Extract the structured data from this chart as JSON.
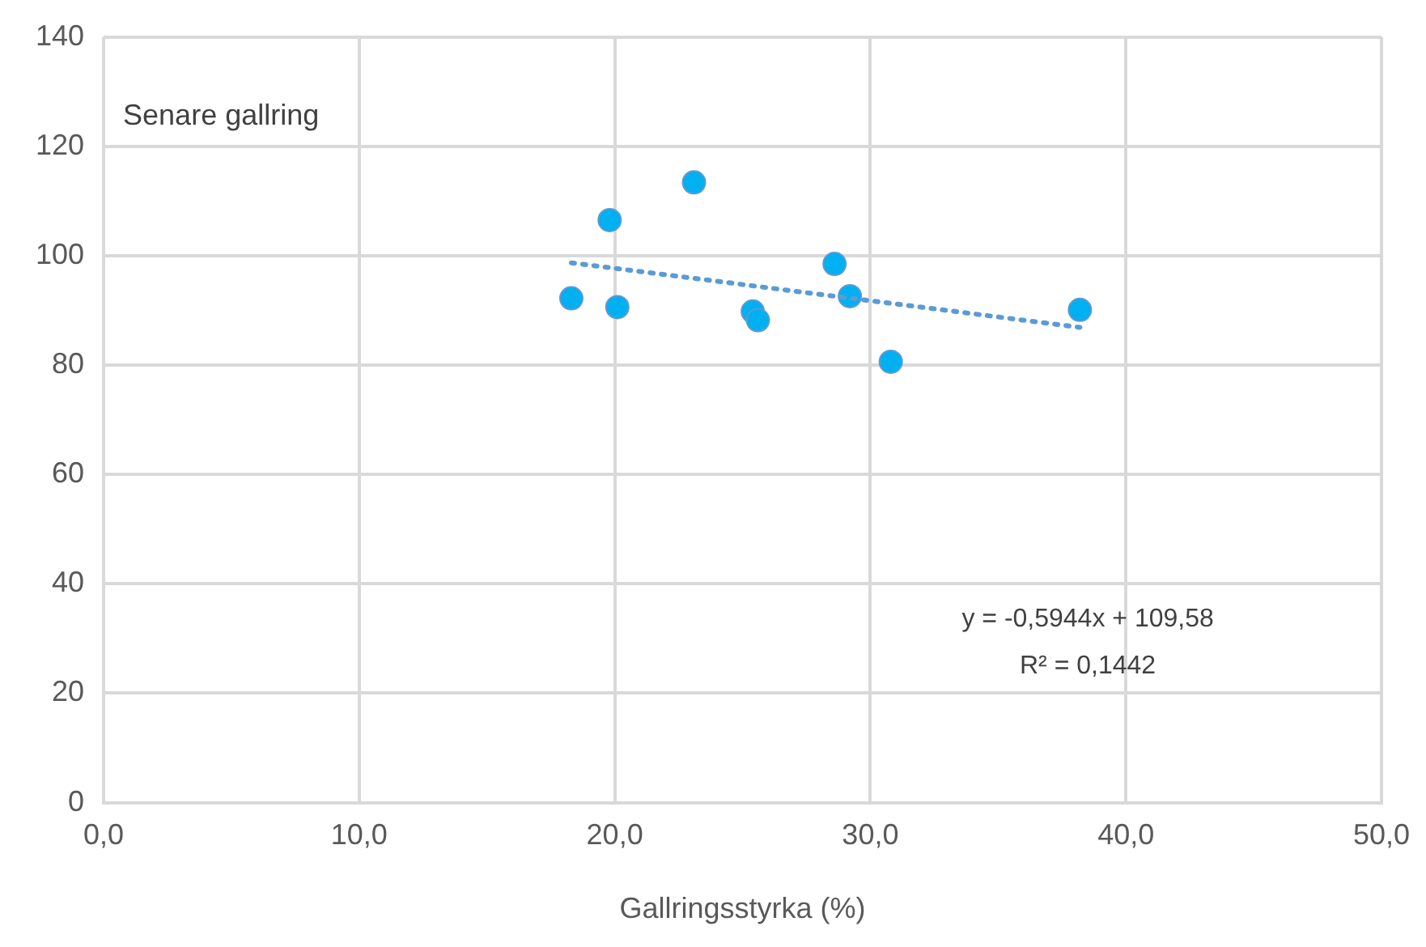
{
  "chart_data": {
    "type": "scatter",
    "xlabel": "Gallringsstyrka (%)",
    "xlim": [
      0,
      50
    ],
    "xticks": [
      {
        "value": 0,
        "label": "0,0"
      },
      {
        "value": 10,
        "label": "10,0"
      },
      {
        "value": 20,
        "label": "20,0"
      },
      {
        "value": 30,
        "label": "30,0"
      },
      {
        "value": 40,
        "label": "40,0"
      },
      {
        "value": 50,
        "label": "50,0"
      }
    ],
    "ylim": [
      0,
      140
    ],
    "yticks": [
      0,
      20,
      40,
      60,
      80,
      100,
      120,
      140
    ],
    "grid": true,
    "legend": false,
    "marker": "circle",
    "series": [
      {
        "type": "scatter",
        "color": "#00b0f0",
        "x": [
          18.3,
          19.8,
          20.1,
          23.1,
          25.4,
          25.6,
          28.6,
          29.2,
          30.8,
          38.2
        ],
        "values": [
          92.2,
          106.5,
          90.6,
          113.4,
          89.8,
          88.2,
          98.5,
          92.6,
          80.6,
          90.1
        ]
      },
      {
        "type": "line",
        "color": "#5b9bd5",
        "line_style": "dotted",
        "marker": "none",
        "x": [
          18.3,
          38.2
        ],
        "values": [
          98.7,
          86.9
        ]
      }
    ],
    "annotations": [
      "Senare gallring",
      "y = -0,5944x + 109,58",
      "R² = 0,1442"
    ]
  }
}
